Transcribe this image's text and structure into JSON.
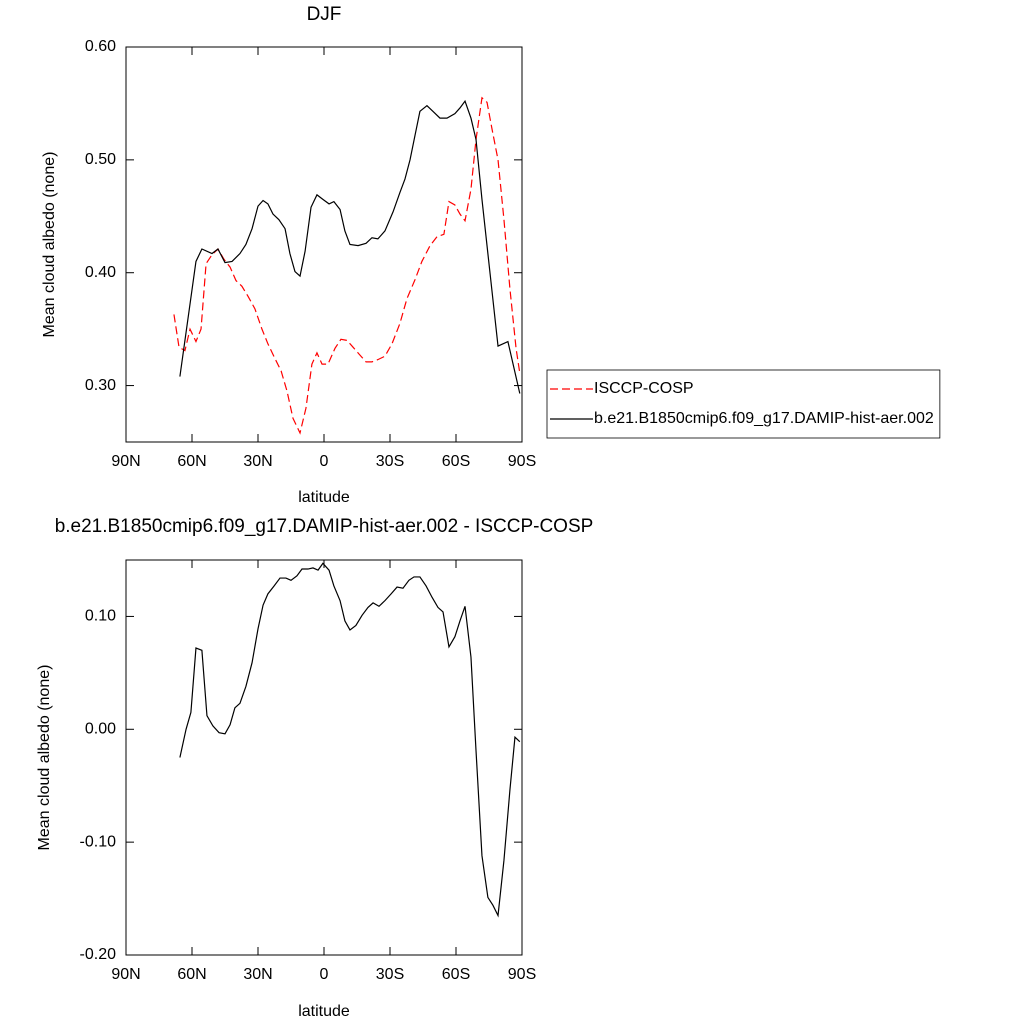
{
  "chart_data": [
    {
      "type": "line",
      "title": "DJF",
      "x_label": "latitude",
      "y_label": "Mean cloud albedo (none)",
      "xlim": [
        90,
        -90
      ],
      "xticks": [
        {
          "value": 90,
          "label": "90N"
        },
        {
          "value": 60,
          "label": "60N"
        },
        {
          "value": 30,
          "label": "30N"
        },
        0,
        {
          "value": -30,
          "label": "30S"
        },
        {
          "value": -60,
          "label": "60S"
        },
        {
          "value": -90,
          "label": "90S"
        }
      ],
      "ylim": [
        0.25,
        0.6
      ],
      "yticks": [
        {
          "value": 0.3,
          "label": "0.30"
        },
        {
          "value": 0.4,
          "label": "0.40"
        },
        {
          "value": 0.5,
          "label": "0.50"
        },
        {
          "value": 0.6,
          "label": "0.60"
        }
      ],
      "legend": "right",
      "series": [
        {
          "name": "ISCCP-COSP",
          "color": "#ff0000",
          "line_style": "dashed",
          "x": [
            68.2,
            65.9,
            63.2,
            60.9,
            58.2,
            55.9,
            53.6,
            50.9,
            48.2,
            45.5,
            42.7,
            40,
            37.3,
            34.5,
            31.4,
            28.2,
            25.5,
            22.3,
            19.5,
            16.8,
            14.1,
            10.9,
            8.2,
            5.5,
            3.2,
            0.9,
            -1.8,
            -5,
            -7.7,
            -10.5,
            -13.2,
            -15.9,
            -19.1,
            -21.8,
            -24.5,
            -27.7,
            -30.9,
            -34.5,
            -37.7,
            -41.4,
            -44.5,
            -48.2,
            -51.4,
            -54.5,
            -56.8,
            -59.5,
            -61.8,
            -64.1,
            -66.8,
            -69.1,
            -71.8,
            -74.1,
            -76.4,
            -79.1,
            -81.8,
            -84.5,
            -87.3,
            -89
          ],
          "values": [
            0.363,
            0.334,
            0.331,
            0.35,
            0.339,
            0.35,
            0.408,
            0.416,
            0.421,
            0.412,
            0.405,
            0.393,
            0.388,
            0.379,
            0.368,
            0.35,
            0.337,
            0.324,
            0.313,
            0.295,
            0.271,
            0.258,
            0.28,
            0.319,
            0.329,
            0.319,
            0.319,
            0.333,
            0.341,
            0.34,
            0.334,
            0.328,
            0.321,
            0.321,
            0.323,
            0.326,
            0.337,
            0.355,
            0.377,
            0.394,
            0.41,
            0.424,
            0.432,
            0.434,
            0.463,
            0.46,
            0.452,
            0.446,
            0.474,
            0.518,
            0.555,
            0.551,
            0.527,
            0.5,
            0.447,
            0.386,
            0.333,
            0.311
          ]
        },
        {
          "name": "b.e21.B1850cmip6.f09_g17.DAMIP-hist-aer.002",
          "color": "#000000",
          "line_style": "solid",
          "x": [
            65.5,
            58.2,
            55.5,
            50.9,
            48.2,
            45,
            41.8,
            38.2,
            35.5,
            32.7,
            30,
            27.7,
            25.5,
            23.2,
            20.5,
            17.7,
            15.5,
            13.2,
            10.9,
            8.6,
            5.9,
            3.2,
            0.5,
            -2.3,
            -4.5,
            -7.3,
            -9.5,
            -11.8,
            -15.5,
            -19.1,
            -21.8,
            -24.5,
            -27.7,
            -31.4,
            -34.5,
            -36.8,
            -39.1,
            -41.4,
            -43.6,
            -46.8,
            -49.5,
            -52.7,
            -55.9,
            -59.5,
            -61.8,
            -64.1,
            -66.8,
            -69.1,
            -71.8,
            -75.5,
            -79.1,
            -83.6,
            -89
          ],
          "values": [
            0.308,
            0.41,
            0.421,
            0.417,
            0.421,
            0.409,
            0.41,
            0.417,
            0.425,
            0.439,
            0.459,
            0.464,
            0.461,
            0.452,
            0.447,
            0.439,
            0.417,
            0.401,
            0.397,
            0.419,
            0.458,
            0.469,
            0.465,
            0.461,
            0.463,
            0.456,
            0.437,
            0.425,
            0.424,
            0.426,
            0.431,
            0.43,
            0.437,
            0.454,
            0.471,
            0.483,
            0.5,
            0.522,
            0.543,
            0.548,
            0.543,
            0.537,
            0.537,
            0.541,
            0.546,
            0.552,
            0.537,
            0.518,
            0.465,
            0.399,
            0.335,
            0.339,
            0.293
          ]
        }
      ]
    },
    {
      "type": "line",
      "title": "b.e21.B1850cmip6.f09_g17.DAMIP-hist-aer.002 - ISCCP-COSP",
      "x_label": "latitude",
      "y_label": "Mean cloud albedo (none)",
      "xlim": [
        90,
        -90
      ],
      "xticks": [
        {
          "value": 90,
          "label": "90N"
        },
        {
          "value": 60,
          "label": "60N"
        },
        {
          "value": 30,
          "label": "30N"
        },
        0,
        {
          "value": -30,
          "label": "30S"
        },
        {
          "value": -60,
          "label": "60S"
        },
        {
          "value": -90,
          "label": "90S"
        }
      ],
      "ylim": [
        -0.2,
        0.15
      ],
      "yticks": [
        {
          "value": -0.2,
          "label": "-0.20"
        },
        {
          "value": -0.1,
          "label": "-0.10"
        },
        {
          "value": 0,
          "label": "0.00"
        },
        {
          "value": 0.1,
          "label": "0.10"
        }
      ],
      "series": [
        {
          "color": "#000000",
          "line_style": "solid",
          "x": [
            65.5,
            62.7,
            60.5,
            58.2,
            55.5,
            53.2,
            50.5,
            47.7,
            45,
            42.7,
            40.5,
            38.2,
            35.5,
            32.7,
            30,
            27.7,
            25.5,
            22.7,
            20,
            17.3,
            15,
            12.3,
            10,
            7.3,
            5,
            2.7,
            0.5,
            -2.3,
            -4.5,
            -7.3,
            -9.5,
            -11.8,
            -14.5,
            -17.3,
            -20,
            -22.3,
            -25,
            -27.7,
            -30.5,
            -33.2,
            -35.9,
            -38.6,
            -40.9,
            -43.6,
            -46.4,
            -49.1,
            -51.8,
            -54.1,
            -56.8,
            -59.5,
            -61.8,
            -64.1,
            -66.8,
            -69.1,
            -71.8,
            -74.5,
            -76.8,
            -79.1,
            -81.8,
            -84.5,
            -86.8,
            -89
          ],
          "values": [
            -0.025,
            0.0,
            0.015,
            0.072,
            0.07,
            0.012,
            0.003,
            -0.003,
            -0.004,
            0.004,
            0.019,
            0.023,
            0.038,
            0.059,
            0.089,
            0.11,
            0.12,
            0.127,
            0.134,
            0.134,
            0.132,
            0.136,
            0.142,
            0.142,
            0.143,
            0.141,
            0.147,
            0.141,
            0.127,
            0.114,
            0.096,
            0.088,
            0.092,
            0.101,
            0.108,
            0.112,
            0.109,
            0.114,
            0.12,
            0.126,
            0.125,
            0.132,
            0.135,
            0.135,
            0.127,
            0.117,
            0.108,
            0.104,
            0.073,
            0.082,
            0.096,
            0.109,
            0.064,
            -0.019,
            -0.112,
            -0.149,
            -0.156,
            -0.165,
            -0.116,
            -0.054,
            -0.007,
            -0.011
          ]
        }
      ]
    }
  ]
}
